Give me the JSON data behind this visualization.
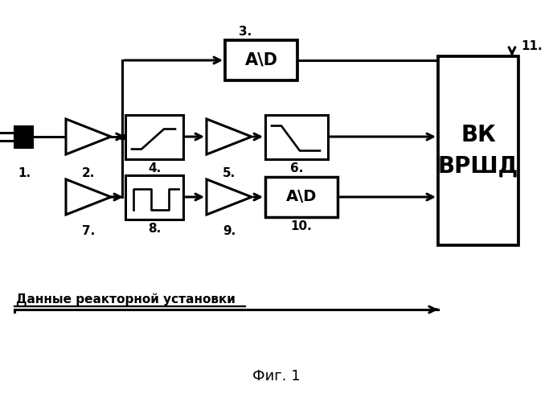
{
  "bg_color": "#ffffff",
  "fig_caption": "Фиг. 1",
  "data_label": "Данные реакторной установки",
  "vk_label": "ВК\nВРШД",
  "label_11": "11.",
  "label_1": "1.",
  "label_2": "2.",
  "label_3": "3.",
  "label_4": "4.",
  "label_5": "5.",
  "label_6": "6.",
  "label_7": "7.",
  "label_8": "8.",
  "label_9": "9.",
  "label_10": "10.",
  "line_color": "black",
  "lw": 2.2
}
